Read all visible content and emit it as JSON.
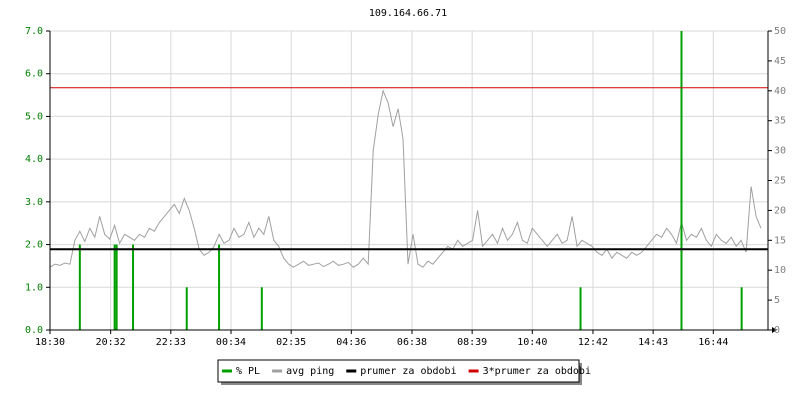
{
  "chart_data": {
    "type": "line",
    "title": "109.164.66.71",
    "xlim": [
      0,
      1444
    ],
    "xticks": [
      {
        "value": 0,
        "label": "18:30"
      },
      {
        "value": 122,
        "label": "20:32"
      },
      {
        "value": 243,
        "label": "22:33"
      },
      {
        "value": 364,
        "label": "00:34"
      },
      {
        "value": 485,
        "label": "02:35"
      },
      {
        "value": 606,
        "label": "04:36"
      },
      {
        "value": 728,
        "label": "06:38"
      },
      {
        "value": 849,
        "label": "08:39"
      },
      {
        "value": 970,
        "label": "10:40"
      },
      {
        "value": 1092,
        "label": "12:42"
      },
      {
        "value": 1213,
        "label": "14:43"
      },
      {
        "value": 1334,
        "label": "16:44"
      }
    ],
    "ylim": [
      0,
      7
    ],
    "yticks": [
      {
        "value": 0,
        "label": "0.0"
      },
      {
        "value": 1,
        "label": "1.0"
      },
      {
        "value": 2,
        "label": "2.0"
      },
      {
        "value": 3,
        "label": "3.0"
      },
      {
        "value": 4,
        "label": "4.0"
      },
      {
        "value": 5,
        "label": "5.0"
      },
      {
        "value": 6,
        "label": "6.0"
      },
      {
        "value": 7,
        "label": "7.0"
      }
    ],
    "y2lim": [
      0,
      50
    ],
    "y2ticks": [
      0,
      5,
      10,
      15,
      20,
      25,
      30,
      35,
      40,
      45,
      50
    ],
    "grid": true,
    "legend": "bottom",
    "ytick_color": "#008000",
    "y2tick_color": "#808080",
    "series": [
      {
        "name": "% PL",
        "color": "#00a000",
        "kind": "bar",
        "x": [
          60,
          130,
          134,
          167,
          275,
          340,
          426,
          1067,
          1270,
          1391
        ],
        "values": [
          2,
          2,
          2,
          2,
          1,
          2,
          1,
          1,
          7,
          1
        ]
      },
      {
        "name": "avg ping",
        "color": "#a0a0a0",
        "kind": "line",
        "axis": "y2",
        "x": [
          0,
          10,
          20,
          30,
          40,
          50,
          60,
          70,
          80,
          90,
          100,
          110,
          120,
          130,
          140,
          150,
          160,
          170,
          180,
          190,
          200,
          210,
          220,
          230,
          240,
          250,
          260,
          270,
          280,
          290,
          300,
          310,
          320,
          330,
          340,
          350,
          360,
          370,
          380,
          390,
          400,
          410,
          420,
          430,
          440,
          450,
          460,
          470,
          480,
          490,
          500,
          510,
          520,
          530,
          540,
          550,
          560,
          570,
          580,
          590,
          600,
          610,
          620,
          630,
          640,
          650,
          660,
          670,
          680,
          690,
          700,
          710,
          720,
          730,
          740,
          750,
          760,
          770,
          780,
          790,
          800,
          810,
          820,
          830,
          840,
          850,
          860,
          870,
          880,
          890,
          900,
          910,
          920,
          930,
          940,
          950,
          960,
          970,
          980,
          990,
          1000,
          1010,
          1020,
          1030,
          1040,
          1050,
          1060,
          1070,
          1080,
          1090,
          1100,
          1110,
          1120,
          1130,
          1140,
          1150,
          1160,
          1170,
          1180,
          1190,
          1200,
          1210,
          1220,
          1230,
          1240,
          1250,
          1260,
          1270,
          1280,
          1290,
          1300,
          1310,
          1320,
          1330,
          1340,
          1350,
          1360,
          1370,
          1380,
          1390,
          1400,
          1410,
          1420,
          1430
        ],
        "values": [
          10.5,
          11,
          10.8,
          11.2,
          11,
          15,
          16.5,
          14.8,
          17,
          15.5,
          19,
          16,
          15.2,
          17.5,
          14.5,
          16,
          15.5,
          15,
          16,
          15.5,
          17,
          16.5,
          18,
          19,
          20,
          21,
          19.5,
          22,
          20,
          17,
          13.5,
          12.5,
          13,
          14,
          16,
          14.5,
          15,
          17,
          15.5,
          16,
          18,
          15.5,
          17,
          16,
          19,
          15,
          14,
          12,
          11,
          10.5,
          11,
          11.5,
          10.8,
          11,
          11.2,
          10.6,
          11,
          11.5,
          10.8,
          11,
          11.3,
          10.5,
          11,
          12,
          11,
          30,
          36,
          40,
          38,
          34,
          37,
          32,
          11,
          16,
          11,
          10.5,
          11.5,
          11,
          12,
          13,
          14,
          13.5,
          15,
          14,
          14.5,
          15,
          20,
          14,
          15,
          16,
          14.5,
          17,
          15,
          16,
          18,
          15,
          14.5,
          17,
          16,
          15,
          14,
          15,
          16,
          14.5,
          15,
          19,
          14,
          15,
          14.5,
          14,
          13,
          12.5,
          13.5,
          12,
          13,
          12.5,
          12,
          13,
          12.5,
          13,
          14,
          15,
          16,
          15.5,
          17,
          16,
          14.5,
          18,
          15,
          16,
          15.5,
          17,
          15,
          14,
          16,
          15,
          14.5,
          15.5,
          14,
          15,
          13,
          24,
          19,
          17
        ]
      },
      {
        "name": "prumer za obdobi",
        "color": "#000000",
        "kind": "hline",
        "axis": "y2",
        "value": 13.5
      },
      {
        "name": "3*prumer za obdobi",
        "color": "#d00000",
        "kind": "hline",
        "axis": "y2",
        "value": 40.5
      }
    ]
  }
}
